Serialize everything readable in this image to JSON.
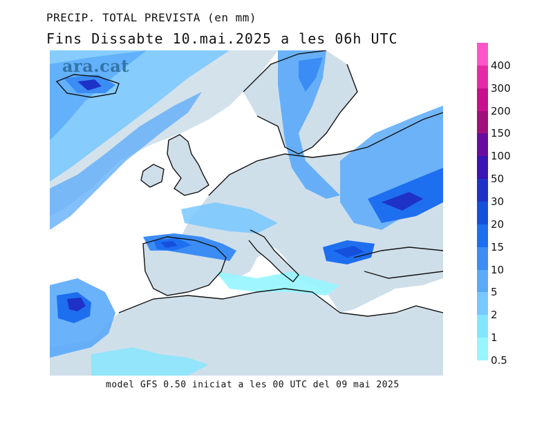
{
  "title_line1": "PRECIP. TOTAL PREVISTA (en mm)",
  "title_line2": "Fins Dissabte  10.mai.2025 a les 06h UTC",
  "watermark": "ara.cat",
  "footer": "model GFS 0.50 iniciat a les 00 UTC del 09 mai 2025",
  "colors": {
    "land": "#cfdfea",
    "sea_nodata": "#ffffff",
    "coast": "#111111"
  },
  "legend": {
    "labels": [
      "400",
      "300",
      "200",
      "150",
      "100",
      "50",
      "30",
      "20",
      "15",
      "10",
      "5",
      "2",
      "1",
      "0.5"
    ],
    "colors": [
      "#ff55c8",
      "#e62aa6",
      "#c80f8c",
      "#a00f7c",
      "#6a0ca0",
      "#3a14b4",
      "#1e32c8",
      "#1450dc",
      "#1e6ef0",
      "#3c8cf5",
      "#5aaafa",
      "#78c8ff",
      "#82e6ff",
      "#96f5ff"
    ]
  }
}
